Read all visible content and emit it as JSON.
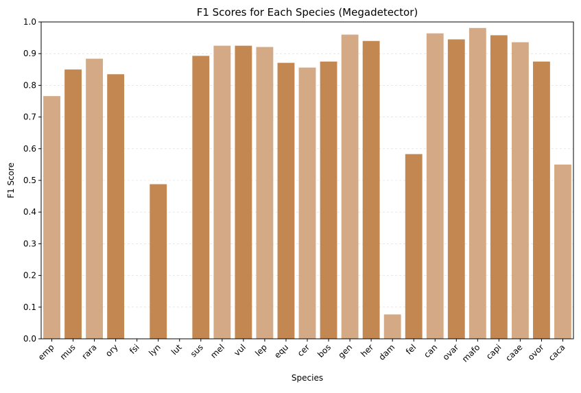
{
  "chart_data": {
    "type": "bar",
    "title": "F1 Scores for Each Species (Megadetector)",
    "xlabel": "Species",
    "ylabel": "F1 Score",
    "ylim": [
      0,
      1.0
    ],
    "yticks": [
      "0.0",
      "0.1",
      "0.2",
      "0.3",
      "0.4",
      "0.5",
      "0.6",
      "0.7",
      "0.8",
      "0.9",
      "1.0"
    ],
    "grid": true,
    "categories": [
      "emp",
      "mus",
      "rara",
      "ory",
      "fsi",
      "lyn",
      "lut",
      "sus",
      "mel",
      "vul",
      "lep",
      "equ",
      "cer",
      "bos",
      "gen",
      "her",
      "dam",
      "fel",
      "can",
      "ovar",
      "mafo",
      "capi",
      "caae",
      "ovor",
      "caca"
    ],
    "values": [
      0.766,
      0.85,
      0.884,
      0.835,
      0.0,
      0.488,
      0.0,
      0.893,
      0.925,
      0.925,
      0.921,
      0.871,
      0.856,
      0.875,
      0.96,
      0.94,
      0.077,
      0.583,
      0.964,
      0.945,
      0.981,
      0.958,
      0.936,
      0.875,
      0.55
    ],
    "colors": {
      "light": "#d4a985",
      "dark": "#c38852"
    }
  }
}
